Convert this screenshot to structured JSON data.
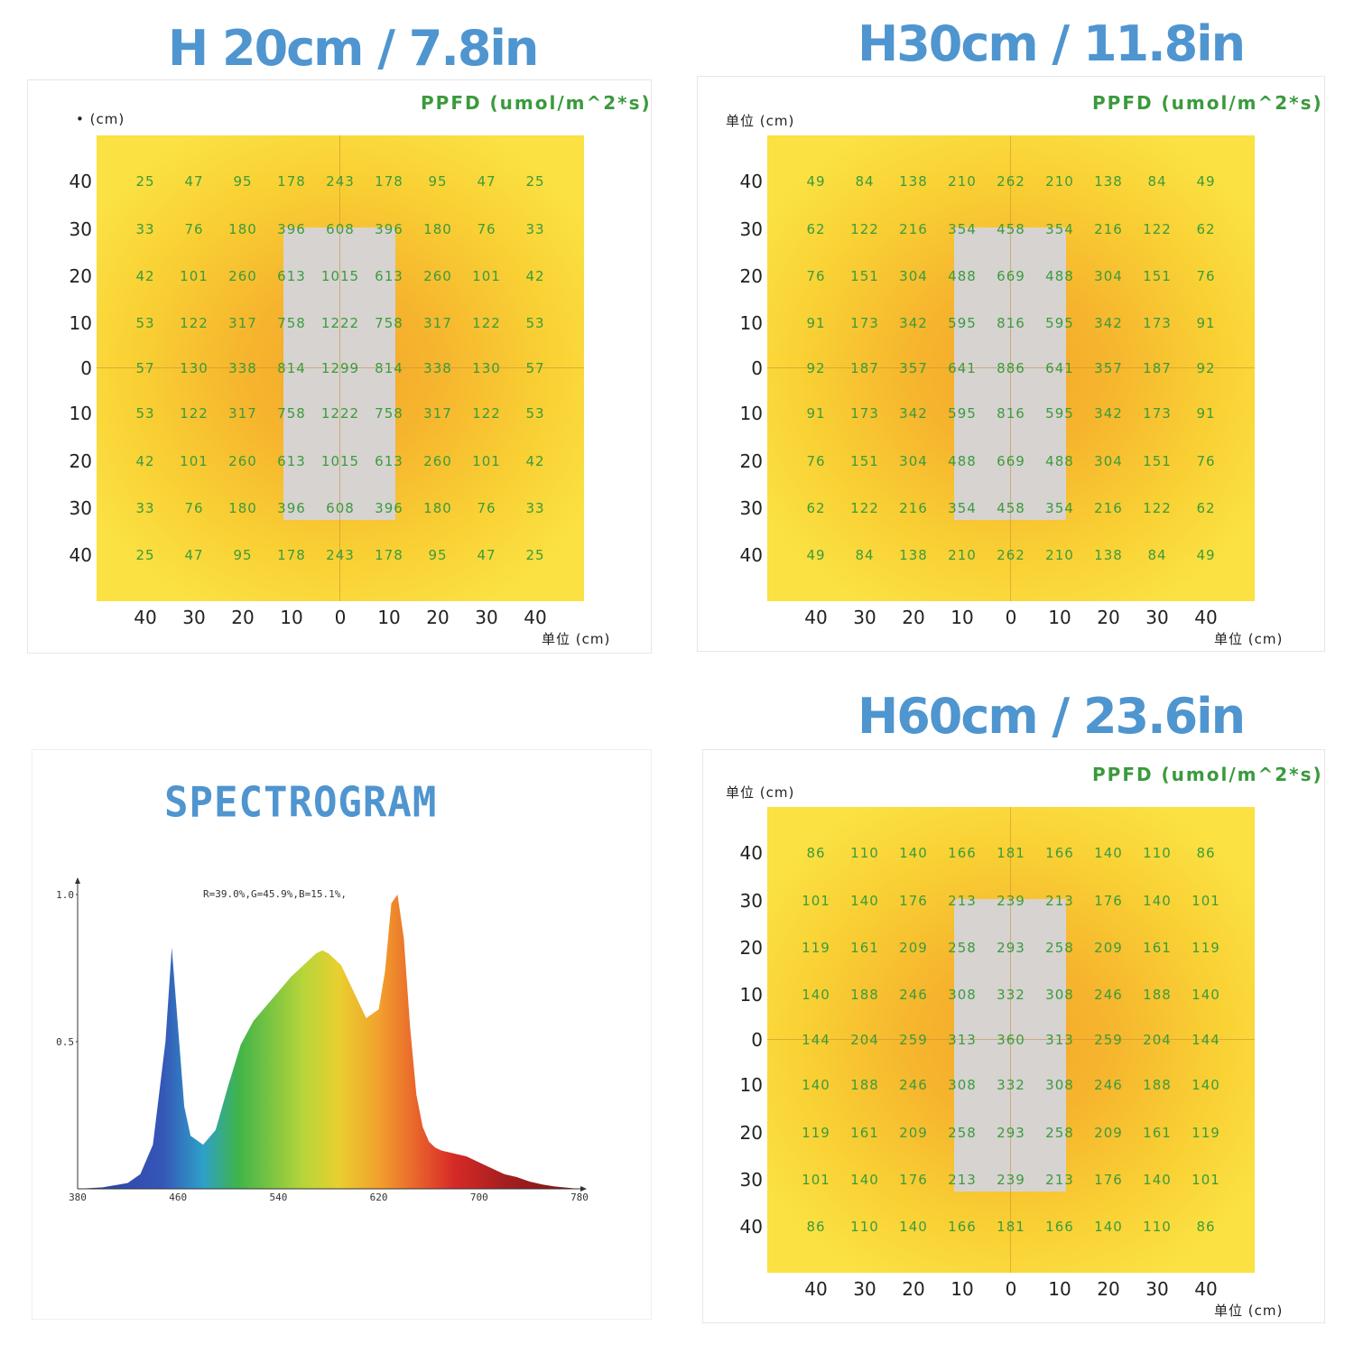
{
  "titles": {
    "h20": "H 20cm / 7.8in",
    "h30": "H30cm / 11.8in",
    "h60": "H60cm / 23.6in",
    "spectrogram": "SPECTROGRAM"
  },
  "labels": {
    "ppfd": "PPFD (umol/m^2*s)",
    "unit_top_h20": "• (cm)",
    "unit_top": "单位 (cm)",
    "unit_bottom": "单位 (cm)"
  },
  "colors": {
    "title_blue": "#4f95cf",
    "value_green": "#3c9b3c",
    "grey_block": "#d6d3d1"
  },
  "chart_data": [
    {
      "type": "heatmap",
      "title": "H 20cm / 7.8in",
      "value_label": "PPFD (umol/m^2*s)",
      "x_ticks": [
        "40",
        "30",
        "20",
        "10",
        "0",
        "10",
        "20",
        "30",
        "40"
      ],
      "y_ticks": [
        "40",
        "30",
        "20",
        "10",
        "0",
        "10",
        "20",
        "30",
        "40"
      ],
      "rows": [
        [
          "25",
          "47",
          "95",
          "178",
          "243",
          "178",
          "95",
          "47",
          "25"
        ],
        [
          "33",
          "76",
          "180",
          "396",
          "608",
          "396",
          "180",
          "76",
          "33"
        ],
        [
          "42",
          "101",
          "260",
          "613",
          "1015",
          "613",
          "260",
          "101",
          "42"
        ],
        [
          "53",
          "122",
          "317",
          "758",
          "1222",
          "758",
          "317",
          "122",
          "53"
        ],
        [
          "57",
          "130",
          "338",
          "814",
          "1299",
          "814",
          "338",
          "130",
          "57"
        ],
        [
          "53",
          "122",
          "317",
          "758",
          "1222",
          "758",
          "317",
          "122",
          "53"
        ],
        [
          "42",
          "101",
          "260",
          "613",
          "1015",
          "613",
          "260",
          "101",
          "42"
        ],
        [
          "33",
          "76",
          "180",
          "396",
          "608",
          "396",
          "180",
          "76",
          "33"
        ],
        [
          "25",
          "47",
          "95",
          "178",
          "243",
          "178",
          "95",
          "47",
          "25"
        ]
      ]
    },
    {
      "type": "heatmap",
      "title": "H30cm / 11.8in",
      "value_label": "PPFD (umol/m^2*s)",
      "x_ticks": [
        "40",
        "30",
        "20",
        "10",
        "0",
        "10",
        "20",
        "30",
        "40"
      ],
      "y_ticks": [
        "40",
        "30",
        "20",
        "10",
        "0",
        "10",
        "20",
        "30",
        "40"
      ],
      "rows": [
        [
          "49",
          "84",
          "138",
          "210",
          "262",
          "210",
          "138",
          "84",
          "49"
        ],
        [
          "62",
          "122",
          "216",
          "354",
          "458",
          "354",
          "216",
          "122",
          "62"
        ],
        [
          "76",
          "151",
          "304",
          "488",
          "669",
          "488",
          "304",
          "151",
          "76"
        ],
        [
          "91",
          "173",
          "342",
          "595",
          "816",
          "595",
          "342",
          "173",
          "91"
        ],
        [
          "92",
          "187",
          "357",
          "641",
          "886",
          "641",
          "357",
          "187",
          "92"
        ],
        [
          "91",
          "173",
          "342",
          "595",
          "816",
          "595",
          "342",
          "173",
          "91"
        ],
        [
          "76",
          "151",
          "304",
          "488",
          "669",
          "488",
          "304",
          "151",
          "76"
        ],
        [
          "62",
          "122",
          "216",
          "354",
          "458",
          "354",
          "216",
          "122",
          "62"
        ],
        [
          "49",
          "84",
          "138",
          "210",
          "262",
          "210",
          "138",
          "84",
          "49"
        ]
      ]
    },
    {
      "type": "heatmap",
      "title": "H60cm / 23.6in",
      "value_label": "PPFD (umol/m^2*s)",
      "x_ticks": [
        "40",
        "30",
        "20",
        "10",
        "0",
        "10",
        "20",
        "30",
        "40"
      ],
      "y_ticks": [
        "40",
        "30",
        "20",
        "10",
        "0",
        "10",
        "20",
        "30",
        "40"
      ],
      "rows": [
        [
          "86",
          "110",
          "140",
          "166",
          "181",
          "166",
          "140",
          "110",
          "86"
        ],
        [
          "101",
          "140",
          "176",
          "213",
          "239",
          "213",
          "176",
          "140",
          "101"
        ],
        [
          "119",
          "161",
          "209",
          "258",
          "293",
          "258",
          "209",
          "161",
          "119"
        ],
        [
          "140",
          "188",
          "246",
          "308",
          "332",
          "308",
          "246",
          "188",
          "140"
        ],
        [
          "144",
          "204",
          "259",
          "313",
          "360",
          "313",
          "259",
          "204",
          "144"
        ],
        [
          "140",
          "188",
          "246",
          "308",
          "332",
          "308",
          "246",
          "188",
          "140"
        ],
        [
          "119",
          "161",
          "209",
          "258",
          "293",
          "258",
          "209",
          "161",
          "119"
        ],
        [
          "101",
          "140",
          "176",
          "213",
          "239",
          "213",
          "176",
          "140",
          "101"
        ],
        [
          "86",
          "110",
          "140",
          "166",
          "181",
          "166",
          "140",
          "110",
          "86"
        ]
      ]
    },
    {
      "type": "area",
      "title": "SPECTROGRAM",
      "annotation": "R=39.0%,G=45.9%,B=15.1%,",
      "x_ticks": [
        "380",
        "460",
        "540",
        "620",
        "700",
        "780"
      ],
      "y_ticks": [
        "1.0",
        "0.5"
      ],
      "xlim": [
        380,
        780
      ],
      "ylim": [
        0,
        1.1
      ],
      "x": [
        380,
        400,
        420,
        430,
        440,
        450,
        455,
        460,
        465,
        470,
        480,
        490,
        500,
        510,
        520,
        530,
        540,
        550,
        560,
        570,
        575,
        580,
        590,
        600,
        610,
        620,
        625,
        630,
        635,
        640,
        645,
        650,
        655,
        660,
        665,
        670,
        680,
        690,
        700,
        710,
        720,
        730,
        740,
        750,
        760,
        770,
        780
      ],
      "y": [
        0,
        0.005,
        0.02,
        0.05,
        0.15,
        0.5,
        0.82,
        0.55,
        0.28,
        0.18,
        0.15,
        0.2,
        0.35,
        0.49,
        0.57,
        0.62,
        0.67,
        0.72,
        0.76,
        0.8,
        0.81,
        0.8,
        0.76,
        0.67,
        0.58,
        0.61,
        0.74,
        0.97,
        1.0,
        0.85,
        0.55,
        0.32,
        0.21,
        0.16,
        0.14,
        0.13,
        0.12,
        0.11,
        0.09,
        0.07,
        0.05,
        0.04,
        0.025,
        0.015,
        0.008,
        0.004,
        0.0
      ]
    }
  ]
}
